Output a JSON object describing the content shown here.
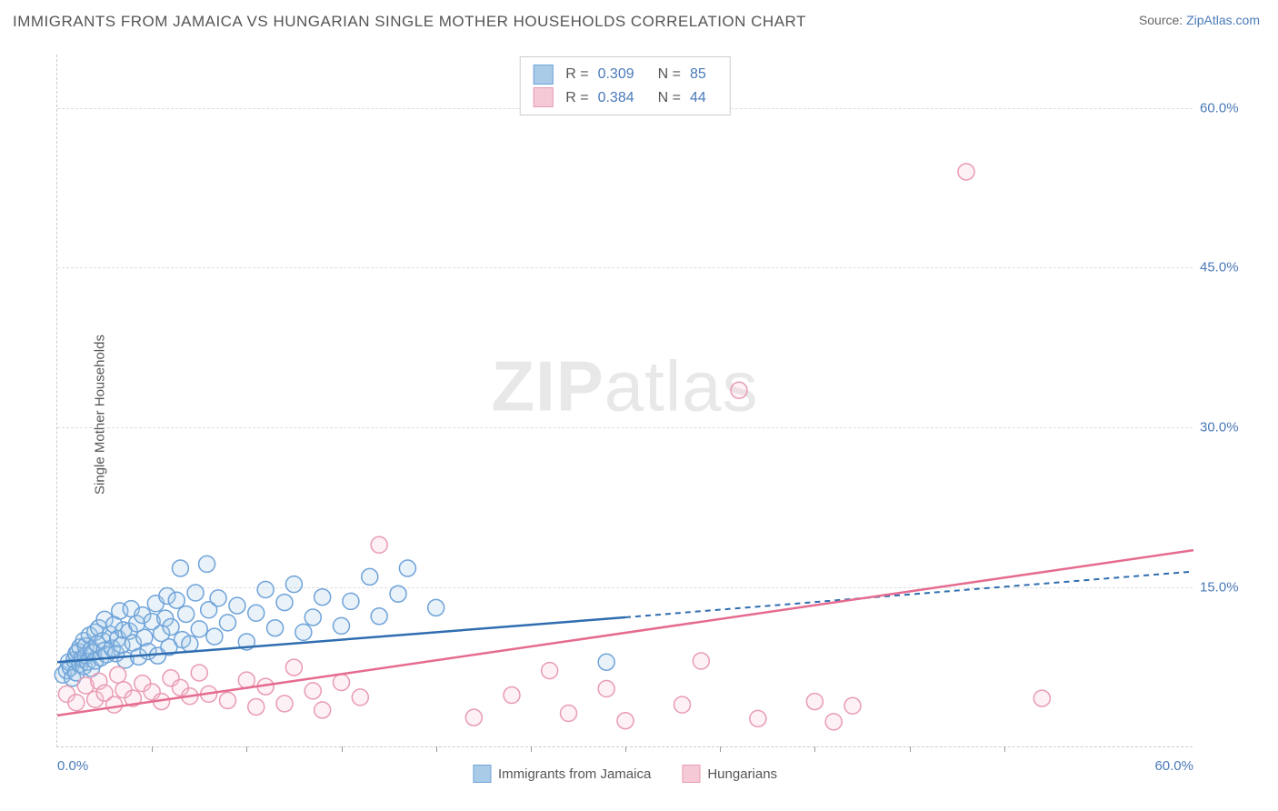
{
  "title": "IMMIGRANTS FROM JAMAICA VS HUNGARIAN SINGLE MOTHER HOUSEHOLDS CORRELATION CHART",
  "source_label": "Source:",
  "source_name": "ZipAtlas.com",
  "watermark_a": "ZIP",
  "watermark_b": "atlas",
  "y_axis_label": "Single Mother Households",
  "chart": {
    "type": "scatter",
    "xlim": [
      0,
      60
    ],
    "ylim": [
      0,
      65
    ],
    "y_ticks": [
      15.0,
      30.0,
      45.0,
      60.0
    ],
    "y_tick_labels": [
      "15.0%",
      "30.0%",
      "45.0%",
      "60.0%"
    ],
    "x_tick_marks": [
      5,
      10,
      15,
      20,
      25,
      30,
      35,
      40,
      45,
      50
    ],
    "x_end_labels": [
      "0.0%",
      "60.0%"
    ],
    "background_color": "#ffffff",
    "grid_color": "#dddddd",
    "axis_color": "#cccccc",
    "tick_label_color": "#4a7ab8",
    "marker_radius": 9,
    "marker_fill_opacity": 0.25,
    "marker_stroke_width": 1.5,
    "line_width_solid": 2.5,
    "line_width_dash": 2,
    "dash_pattern": "6,5"
  },
  "series": [
    {
      "name": "Immigrants from Jamaica",
      "color_stroke": "#6fa3d9",
      "color_fill": "#a9cbe8",
      "line_color": "#2f6db0",
      "r": 0.309,
      "n": 85,
      "trend_solid": {
        "x1": 0,
        "y1": 8.0,
        "x2": 30,
        "y2": 12.2
      },
      "trend_dash": {
        "x1": 30,
        "y1": 12.2,
        "x2": 60,
        "y2": 16.5
      },
      "points": [
        [
          0.3,
          6.8
        ],
        [
          0.5,
          7.2
        ],
        [
          0.6,
          8.0
        ],
        [
          0.7,
          7.5
        ],
        [
          0.8,
          6.5
        ],
        [
          0.9,
          8.2
        ],
        [
          1.0,
          7.0
        ],
        [
          1.0,
          8.8
        ],
        [
          1.1,
          9.0
        ],
        [
          1.2,
          7.8
        ],
        [
          1.2,
          9.4
        ],
        [
          1.3,
          8.3
        ],
        [
          1.4,
          7.6
        ],
        [
          1.4,
          10.0
        ],
        [
          1.5,
          8.6
        ],
        [
          1.5,
          9.5
        ],
        [
          1.6,
          8.0
        ],
        [
          1.7,
          10.5
        ],
        [
          1.8,
          9.2
        ],
        [
          1.8,
          7.4
        ],
        [
          1.9,
          8.9
        ],
        [
          2.0,
          10.8
        ],
        [
          2.0,
          8.1
        ],
        [
          2.1,
          9.7
        ],
        [
          2.2,
          11.2
        ],
        [
          2.3,
          8.4
        ],
        [
          2.4,
          10.0
        ],
        [
          2.5,
          9.1
        ],
        [
          2.5,
          12.0
        ],
        [
          2.6,
          8.7
        ],
        [
          2.8,
          10.6
        ],
        [
          2.9,
          9.3
        ],
        [
          3.0,
          11.5
        ],
        [
          3.1,
          8.8
        ],
        [
          3.2,
          10.2
        ],
        [
          3.3,
          12.8
        ],
        [
          3.4,
          9.6
        ],
        [
          3.5,
          11.0
        ],
        [
          3.6,
          8.2
        ],
        [
          3.8,
          10.9
        ],
        [
          3.9,
          13.0
        ],
        [
          4.0,
          9.8
        ],
        [
          4.2,
          11.6
        ],
        [
          4.3,
          8.5
        ],
        [
          4.5,
          12.4
        ],
        [
          4.6,
          10.3
        ],
        [
          4.8,
          9.0
        ],
        [
          5.0,
          11.8
        ],
        [
          5.2,
          13.5
        ],
        [
          5.3,
          8.6
        ],
        [
          5.5,
          10.7
        ],
        [
          5.7,
          12.1
        ],
        [
          5.8,
          14.2
        ],
        [
          5.9,
          9.4
        ],
        [
          6.0,
          11.3
        ],
        [
          6.3,
          13.8
        ],
        [
          6.5,
          16.8
        ],
        [
          6.6,
          10.1
        ],
        [
          6.8,
          12.5
        ],
        [
          7.0,
          9.7
        ],
        [
          7.3,
          14.5
        ],
        [
          7.5,
          11.1
        ],
        [
          7.9,
          17.2
        ],
        [
          8.0,
          12.9
        ],
        [
          8.3,
          10.4
        ],
        [
          8.5,
          14.0
        ],
        [
          9.0,
          11.7
        ],
        [
          9.5,
          13.3
        ],
        [
          10.0,
          9.9
        ],
        [
          10.5,
          12.6
        ],
        [
          11.0,
          14.8
        ],
        [
          11.5,
          11.2
        ],
        [
          12.0,
          13.6
        ],
        [
          12.5,
          15.3
        ],
        [
          13.0,
          10.8
        ],
        [
          13.5,
          12.2
        ],
        [
          14.0,
          14.1
        ],
        [
          15.0,
          11.4
        ],
        [
          15.5,
          13.7
        ],
        [
          16.5,
          16.0
        ],
        [
          17.0,
          12.3
        ],
        [
          18.0,
          14.4
        ],
        [
          18.5,
          16.8
        ],
        [
          20.0,
          13.1
        ],
        [
          29.0,
          8.0
        ]
      ]
    },
    {
      "name": "Hungarians",
      "color_stroke": "#e99bb2",
      "color_fill": "#f6c9d6",
      "line_color": "#e56b8f",
      "r": 0.384,
      "n": 44,
      "trend_solid": {
        "x1": 0,
        "y1": 3.0,
        "x2": 60,
        "y2": 18.5
      },
      "trend_dash": null,
      "points": [
        [
          0.5,
          5.0
        ],
        [
          1.0,
          4.2
        ],
        [
          1.5,
          5.8
        ],
        [
          2.0,
          4.5
        ],
        [
          2.2,
          6.2
        ],
        [
          2.5,
          5.1
        ],
        [
          3.0,
          4.0
        ],
        [
          3.2,
          6.8
        ],
        [
          3.5,
          5.4
        ],
        [
          4.0,
          4.6
        ],
        [
          4.5,
          6.0
        ],
        [
          5.0,
          5.2
        ],
        [
          5.5,
          4.3
        ],
        [
          6.0,
          6.5
        ],
        [
          6.5,
          5.6
        ],
        [
          7.0,
          4.8
        ],
        [
          7.5,
          7.0
        ],
        [
          8.0,
          5.0
        ],
        [
          9.0,
          4.4
        ],
        [
          10.0,
          6.3
        ],
        [
          10.5,
          3.8
        ],
        [
          11.0,
          5.7
        ],
        [
          12.0,
          4.1
        ],
        [
          12.5,
          7.5
        ],
        [
          13.5,
          5.3
        ],
        [
          14.0,
          3.5
        ],
        [
          15.0,
          6.1
        ],
        [
          16.0,
          4.7
        ],
        [
          17.0,
          19.0
        ],
        [
          22.0,
          2.8
        ],
        [
          24.0,
          4.9
        ],
        [
          26.0,
          7.2
        ],
        [
          27.0,
          3.2
        ],
        [
          29.0,
          5.5
        ],
        [
          30.0,
          2.5
        ],
        [
          33.0,
          4.0
        ],
        [
          34.0,
          8.1
        ],
        [
          36.0,
          33.5
        ],
        [
          37.0,
          2.7
        ],
        [
          40.0,
          4.3
        ],
        [
          41.0,
          2.4
        ],
        [
          42.0,
          3.9
        ],
        [
          48.0,
          54.0
        ],
        [
          52.0,
          4.6
        ]
      ]
    }
  ],
  "legend_top_label_r": "R =",
  "legend_top_label_n": "N ="
}
